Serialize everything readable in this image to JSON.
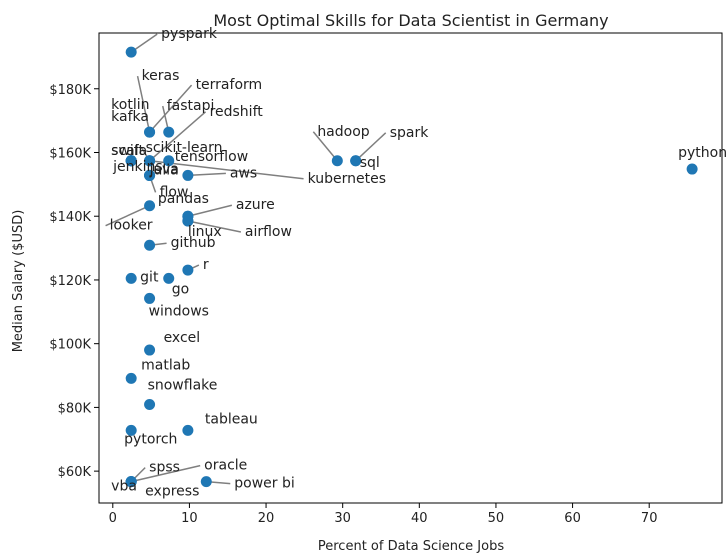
{
  "chart_data": {
    "type": "scatter",
    "title": "Most Optimal Skills for Data Scientist in Germany",
    "xlabel": "Percent of Data Science Jobs",
    "ylabel": "Median Salary ($USD)",
    "xlim": [
      -1.8,
      79.5
    ],
    "ylim": [
      50000,
      197500
    ],
    "x_ticks": [
      0,
      10,
      20,
      30,
      40,
      50,
      60,
      70
    ],
    "x_tick_labels": [
      "0",
      "10",
      "20",
      "30",
      "40",
      "50",
      "60",
      "70"
    ],
    "y_ticks": [
      60000,
      80000,
      100000,
      120000,
      140000,
      160000,
      180000
    ],
    "y_tick_labels": [
      "$60K",
      "$80K",
      "$100K",
      "$120K",
      "$140K",
      "$160K",
      "$180K"
    ],
    "grid": false,
    "marker_color": "#1f77b4",
    "leader_color": "#7f7f7f",
    "points": [
      {
        "label": "pyspark",
        "x": 2.4,
        "y": 191500
      },
      {
        "label": "jenkins",
        "x": 2.4,
        "y": 157400
      },
      {
        "label": "keras",
        "x": 4.8,
        "y": 166400
      },
      {
        "label": "terraform",
        "x": 4.8,
        "y": 166400
      },
      {
        "label": "kotlin",
        "x": 2.4,
        "y": 157400
      },
      {
        "label": "kafka",
        "x": 2.4,
        "y": 157400
      },
      {
        "label": "fastapi",
        "x": 7.3,
        "y": 166400
      },
      {
        "label": "redshift",
        "x": 4.8,
        "y": 157400
      },
      {
        "label": "scala",
        "x": 2.4,
        "y": 157400
      },
      {
        "label": "swift",
        "x": 2.4,
        "y": 157400
      },
      {
        "label": "scikit-learn",
        "x": 4.8,
        "y": 157400
      },
      {
        "label": "hadoop",
        "x": 29.3,
        "y": 157400
      },
      {
        "label": "spark",
        "x": 31.7,
        "y": 157400
      },
      {
        "label": "tensorflow",
        "x": 7.3,
        "y": 157400
      },
      {
        "label": "sql",
        "x": 31.7,
        "y": 157400
      },
      {
        "label": "aws",
        "x": 9.8,
        "y": 152800
      },
      {
        "label": "kubernetes",
        "x": 4.8,
        "y": 157400
      },
      {
        "label": "python",
        "x": 75.6,
        "y": 154800
      },
      {
        "label": "julia",
        "x": 4.8,
        "y": 152800
      },
      {
        "label": "java",
        "x": 4.8,
        "y": 152800
      },
      {
        "label": "flow",
        "x": 4.8,
        "y": 152800
      },
      {
        "label": "pandas",
        "x": 9.8,
        "y": 140000
      },
      {
        "label": "azure",
        "x": 9.8,
        "y": 140000
      },
      {
        "label": "looker",
        "x": 4.8,
        "y": 143300
      },
      {
        "label": "linux",
        "x": 9.8,
        "y": 138500
      },
      {
        "label": "airflow",
        "x": 9.8,
        "y": 138500
      },
      {
        "label": "github",
        "x": 4.8,
        "y": 130900
      },
      {
        "label": "r",
        "x": 9.8,
        "y": 123100
      },
      {
        "label": "git",
        "x": 2.4,
        "y": 120500
      },
      {
        "label": "go",
        "x": 7.3,
        "y": 120500
      },
      {
        "label": "windows",
        "x": 4.8,
        "y": 114200
      },
      {
        "label": "excel",
        "x": 4.8,
        "y": 98000
      },
      {
        "label": "matlab",
        "x": 2.4,
        "y": 89100
      },
      {
        "label": "snowflake",
        "x": 4.8,
        "y": 80900
      },
      {
        "label": "tableau",
        "x": 9.8,
        "y": 72800
      },
      {
        "label": "pytorch",
        "x": 2.4,
        "y": 72800
      },
      {
        "label": "spss",
        "x": 2.4,
        "y": 56700
      },
      {
        "label": "oracle",
        "x": 2.4,
        "y": 56700
      },
      {
        "label": "power bi",
        "x": 12.2,
        "y": 56700
      },
      {
        "label": "vba",
        "x": 2.4,
        "y": 56700
      },
      {
        "label": "express",
        "x": 2.4,
        "y": 56700
      }
    ]
  }
}
